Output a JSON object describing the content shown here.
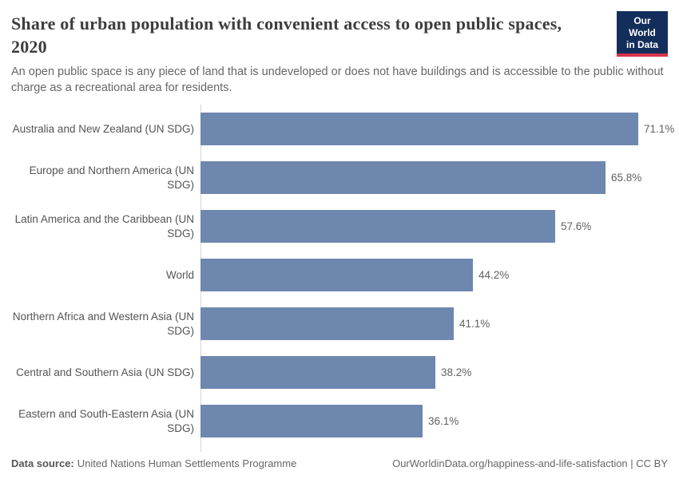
{
  "header": {
    "title": "Share of urban population with convenient access to open public spaces, 2020",
    "subtitle": "An open public space is any piece of land that is undeveloped or does not have buildings and is accessible to the public without charge as a recreational area for residents.",
    "logo": {
      "line1": "Our World",
      "line2": "in Data",
      "bg_color": "#132e5b",
      "accent_color": "#d8354a"
    }
  },
  "chart_data": {
    "type": "bar",
    "orientation": "horizontal",
    "title": "Share of urban population with convenient access to open public spaces, 2020",
    "categories": [
      "Australia and New Zealand (UN SDG)",
      "Europe and Northern America (UN SDG)",
      "Latin America and the Caribbean (UN SDG)",
      "World",
      "Northern Africa and Western Asia (UN SDG)",
      "Central and Southern Asia (UN SDG)",
      "Eastern and South-Eastern Asia (UN SDG)"
    ],
    "values": [
      71.1,
      65.8,
      57.6,
      44.2,
      41.1,
      38.2,
      36.1
    ],
    "value_labels": [
      "71.1%",
      "65.8%",
      "57.6%",
      "44.2%",
      "41.1%",
      "38.2%",
      "36.1%"
    ],
    "unit": "%",
    "bar_color": "#6e87af",
    "xlim": [
      0,
      71.1
    ],
    "grid": false,
    "legend": null
  },
  "footer": {
    "source_label": "Data source:",
    "source_text": "United Nations Human Settlements Programme",
    "link_text": "OurWorldinData.org/happiness-and-life-satisfaction | CC BY"
  }
}
